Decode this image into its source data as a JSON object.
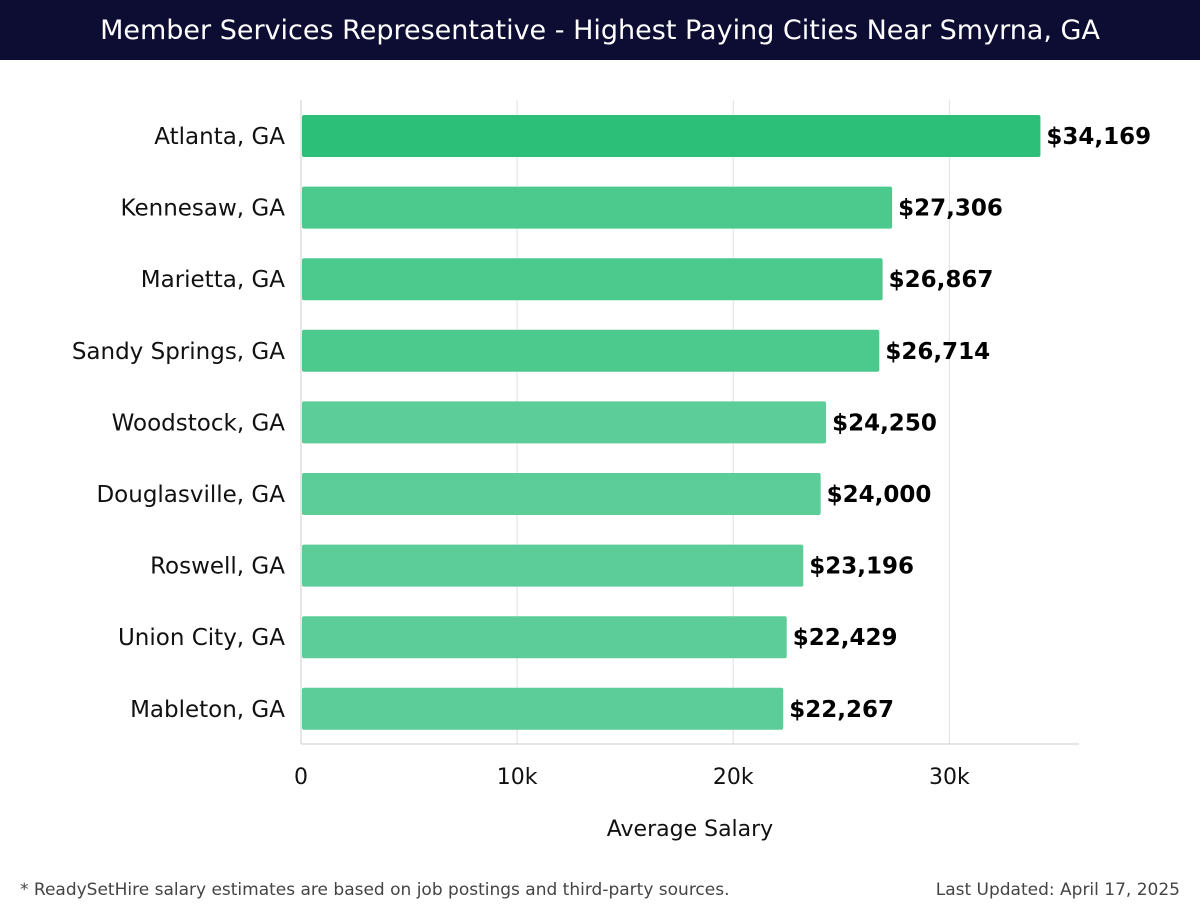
{
  "header": {
    "title": "Member Services Representative - Highest Paying Cities Near Smyrna, GA"
  },
  "chart_data": {
    "type": "bar",
    "orientation": "horizontal",
    "categories": [
      "Atlanta, GA",
      "Kennesaw, GA",
      "Marietta, GA",
      "Sandy Springs, GA",
      "Woodstock, GA",
      "Douglasville, GA",
      "Roswell, GA",
      "Union City, GA",
      "Mableton, GA"
    ],
    "values": [
      34169,
      27306,
      26867,
      26714,
      24250,
      24000,
      23196,
      22429,
      22267
    ],
    "value_labels": [
      "$34,169",
      "$27,306",
      "$26,867",
      "$26,714",
      "$24,250",
      "$24,000",
      "$23,196",
      "$22,429",
      "$22,267"
    ],
    "xlabel": "Average Salary",
    "ylabel": "",
    "xlim": [
      0,
      36000
    ],
    "x_ticks": [
      0,
      10000,
      20000,
      30000
    ],
    "x_tick_labels": [
      "0",
      "10k",
      "20k",
      "30k"
    ],
    "grid": true,
    "colors": {
      "highlight": "#2bbf78",
      "bar": "#4cca8e",
      "bar_light": "#5ccd98",
      "grid": "#e0e0e0",
      "axis": "#cccccc"
    }
  },
  "footer": {
    "note": "* ReadySetHire salary estimates are based on job postings and third-party sources.",
    "updated": "Last Updated: April 17, 2025"
  }
}
